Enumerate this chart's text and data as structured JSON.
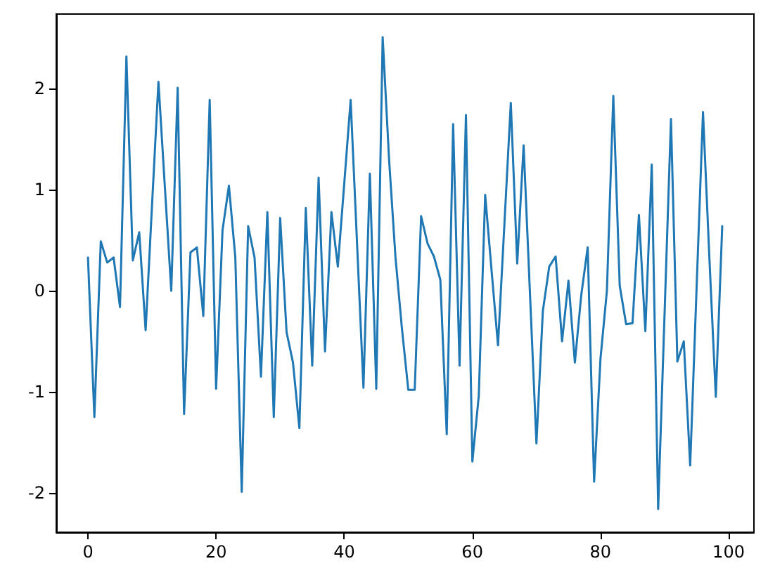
{
  "chart_data": {
    "type": "line",
    "x": [
      0,
      1,
      2,
      3,
      4,
      5,
      6,
      7,
      8,
      9,
      10,
      11,
      12,
      13,
      14,
      15,
      16,
      17,
      18,
      19,
      20,
      21,
      22,
      23,
      24,
      25,
      26,
      27,
      28,
      29,
      30,
      31,
      32,
      33,
      34,
      35,
      36,
      37,
      38,
      39,
      40,
      41,
      42,
      43,
      44,
      45,
      46,
      47,
      48,
      49,
      50,
      51,
      52,
      53,
      54,
      55,
      56,
      57,
      58,
      59,
      60,
      61,
      62,
      63,
      64,
      65,
      66,
      67,
      68,
      69,
      70,
      71,
      72,
      73,
      74,
      75,
      76,
      77,
      78,
      79,
      80,
      81,
      82,
      83,
      84,
      85,
      86,
      87,
      88,
      89,
      90,
      91,
      92,
      93,
      94,
      95,
      96,
      97,
      98,
      99
    ],
    "series": [
      {
        "color": "#1f77b4",
        "values": [
          0.33,
          -1.25,
          0.49,
          0.28,
          0.33,
          -0.16,
          2.32,
          0.3,
          0.58,
          -0.39,
          0.85,
          2.07,
          1.03,
          0.0,
          2.01,
          -1.22,
          0.38,
          0.43,
          -0.25,
          1.89,
          -0.97,
          0.6,
          1.04,
          0.33,
          -1.99,
          0.64,
          0.33,
          -0.85,
          0.78,
          -1.25,
          0.72,
          -0.41,
          -0.71,
          -1.36,
          0.82,
          -0.74,
          1.12,
          -0.6,
          0.78,
          0.24,
          1.06,
          1.89,
          0.47,
          -0.96,
          1.16,
          -0.97,
          2.51,
          1.3,
          0.33,
          -0.37,
          -0.98,
          -0.98,
          0.74,
          0.47,
          0.34,
          0.11,
          -1.42,
          1.65,
          -0.74,
          1.74,
          -1.69,
          -1.04,
          0.95,
          0.2,
          -0.54,
          0.66,
          1.86,
          0.27,
          1.44,
          -0.04,
          -1.51,
          -0.2,
          0.24,
          0.34,
          -0.5,
          0.1,
          -0.71,
          -0.04,
          0.43,
          -1.89,
          -0.67,
          0.0,
          1.93,
          0.05,
          -0.33,
          -0.32,
          0.75,
          -0.4,
          1.25,
          -2.16,
          -0.23,
          1.7,
          -0.7,
          -0.5,
          -1.73,
          0.03,
          1.77,
          0.32,
          -1.05,
          0.64
        ]
      }
    ],
    "xlim": [
      -4.95,
      103.95
    ],
    "xticks": [
      0,
      20,
      40,
      60,
      80,
      100
    ],
    "ylim": [
      -2.39,
      2.74
    ],
    "yticks": [
      -2,
      -1,
      0,
      1,
      2
    ],
    "grid": false,
    "marker": "none",
    "line_style": "solid"
  }
}
